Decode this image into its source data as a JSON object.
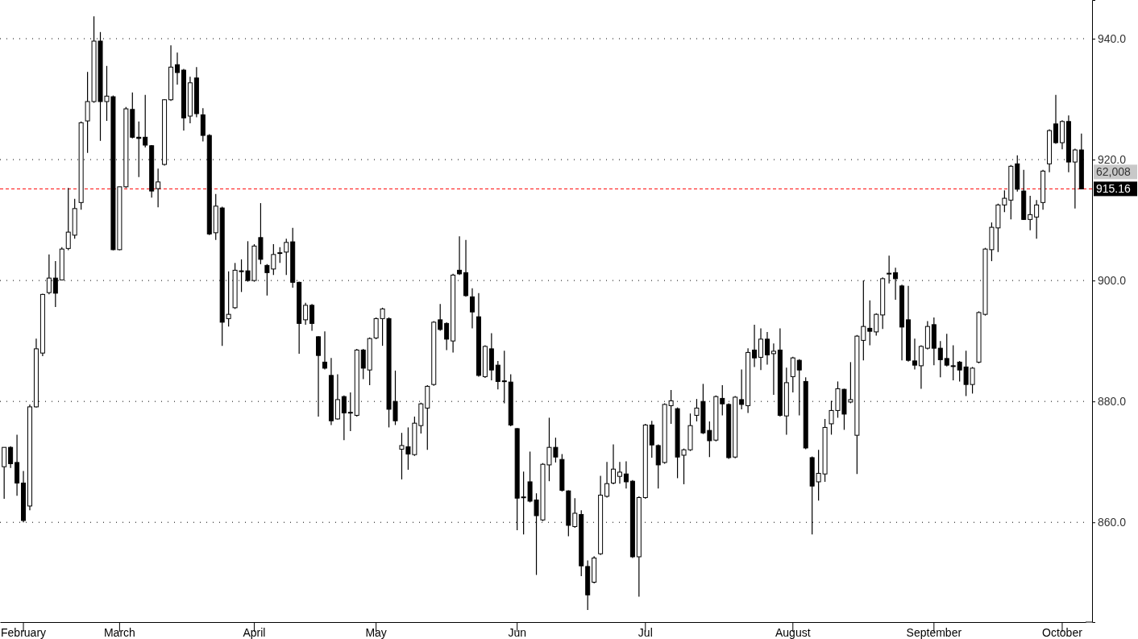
{
  "chart_data": {
    "type": "candlestick",
    "categories": [
      null,
      null,
      null,
      "February",
      null,
      null,
      null,
      null,
      null,
      null,
      null,
      null,
      null,
      null,
      null,
      null,
      null,
      null,
      "March",
      null,
      null,
      null,
      null,
      null,
      null,
      null,
      null,
      null,
      null,
      null,
      null,
      null,
      null,
      null,
      null,
      null,
      null,
      null,
      null,
      "April",
      null,
      null,
      null,
      null,
      null,
      null,
      null,
      null,
      null,
      null,
      null,
      null,
      null,
      null,
      null,
      null,
      null,
      null,
      "May",
      null,
      null,
      null,
      null,
      null,
      null,
      null,
      null,
      null,
      null,
      null,
      null,
      null,
      null,
      null,
      null,
      null,
      null,
      null,
      null,
      null,
      "Jun",
      null,
      null,
      null,
      null,
      null,
      null,
      null,
      null,
      null,
      null,
      null,
      null,
      null,
      null,
      null,
      null,
      null,
      null,
      null,
      "Jul",
      null,
      null,
      null,
      null,
      null,
      null,
      null,
      null,
      null,
      null,
      null,
      null,
      null,
      null,
      null,
      null,
      null,
      null,
      null,
      null,
      null,
      null,
      "August",
      null,
      null,
      null,
      null,
      null,
      null,
      null,
      null,
      null,
      null,
      null,
      null,
      null,
      null,
      null,
      null,
      null,
      null,
      null,
      null,
      null,
      "September",
      null,
      null,
      null,
      null,
      null,
      null,
      null,
      null,
      null,
      null,
      null,
      null,
      null,
      null,
      null,
      null,
      null,
      null,
      null,
      "October",
      null,
      null,
      null
    ],
    "ohlc": [
      [
        869.2,
        872.4,
        863.9,
        872.4
      ],
      [
        872.4,
        872.6,
        869.0,
        869.7
      ],
      [
        869.9,
        874.5,
        864.4,
        866.5
      ],
      [
        866.5,
        868.5,
        860.0,
        860.3
      ],
      [
        862.7,
        879.5,
        862.0,
        879.1
      ],
      [
        879.1,
        890.4,
        879.0,
        888.7
      ],
      [
        888.0,
        897.8,
        887.5,
        897.7
      ],
      [
        898.0,
        904.3,
        897.7,
        900.4
      ],
      [
        900.4,
        903.2,
        895.6,
        897.9
      ],
      [
        900.1,
        905.5,
        900.0,
        905.2
      ],
      [
        905.3,
        915.3,
        905.0,
        908.0
      ],
      [
        907.5,
        913.5,
        906.9,
        911.9
      ],
      [
        912.9,
        926.3,
        911.7,
        926.1
      ],
      [
        926.4,
        934.5,
        921.1,
        929.6
      ],
      [
        929.6,
        943.7,
        929.4,
        939.6
      ],
      [
        939.6,
        941.1,
        923.1,
        929.6
      ],
      [
        929.6,
        935.5,
        926.4,
        930.5
      ],
      [
        930.4,
        930.6,
        905.0,
        905.1
      ],
      [
        905.1,
        915.5,
        905.0,
        915.5
      ],
      [
        915.5,
        928.7,
        915.3,
        928.4
      ],
      [
        928.3,
        931.1,
        923.5,
        923.7
      ],
      [
        923.7,
        926.3,
        917.1,
        923.5
      ],
      [
        923.7,
        930.7,
        922.0,
        922.4
      ],
      [
        922.3,
        922.4,
        913.7,
        914.8
      ],
      [
        915.2,
        918.5,
        912.1,
        916.3
      ],
      [
        919.2,
        930.0,
        919.0,
        929.9
      ],
      [
        929.9,
        938.9,
        929.7,
        935.3
      ],
      [
        935.7,
        937.7,
        932.4,
        934.4
      ],
      [
        934.8,
        935.0,
        924.8,
        926.9
      ],
      [
        927.2,
        933.7,
        926.0,
        932.7
      ],
      [
        933.5,
        935.3,
        927.0,
        927.6
      ],
      [
        927.4,
        928.5,
        923.0,
        924.0
      ],
      [
        924.0,
        924.2,
        907.5,
        907.7
      ],
      [
        907.9,
        914.3,
        906.7,
        912.3
      ],
      [
        912.0,
        912.2,
        889.2,
        893.1
      ],
      [
        893.7,
        901.5,
        892.4,
        894.4
      ],
      [
        895.5,
        902.9,
        895.3,
        901.7
      ],
      [
        901.6,
        903.5,
        898.1,
        901.5
      ],
      [
        901.6,
        906.5,
        899.8,
        900.0
      ],
      [
        900.0,
        906.0,
        899.8,
        905.7
      ],
      [
        907.1,
        912.8,
        902.7,
        903.5
      ],
      [
        902.5,
        902.7,
        897.5,
        901.3
      ],
      [
        901.9,
        906.0,
        900.9,
        904.3
      ],
      [
        904.5,
        905.5,
        902.9,
        904.6
      ],
      [
        904.7,
        906.9,
        900.9,
        906.3
      ],
      [
        906.4,
        908.7,
        898.8,
        899.7
      ],
      [
        899.7,
        899.8,
        887.9,
        892.9
      ],
      [
        893.5,
        896.3,
        892.7,
        895.9
      ],
      [
        895.9,
        896.1,
        891.7,
        892.9
      ],
      [
        890.7,
        890.8,
        877.5,
        887.6
      ],
      [
        886.5,
        891.6,
        885.3,
        885.5
      ],
      [
        884.3,
        887.2,
        876.1,
        876.8
      ],
      [
        877.1,
        884.5,
        877.0,
        880.3
      ],
      [
        880.8,
        881.0,
        873.6,
        878.1
      ],
      [
        878.1,
        881.5,
        875.1,
        878.2
      ],
      [
        877.7,
        888.7,
        877.5,
        888.5
      ],
      [
        888.5,
        888.7,
        883.7,
        885.5
      ],
      [
        885.2,
        890.6,
        882.7,
        890.4
      ],
      [
        890.5,
        893.9,
        890.3,
        893.7
      ],
      [
        893.7,
        895.5,
        889.2,
        895.3
      ],
      [
        893.7,
        893.9,
        875.7,
        878.7
      ],
      [
        880.0,
        885.1,
        876.1,
        876.8
      ],
      [
        872.1,
        874.8,
        867.1,
        872.7
      ],
      [
        872.5,
        875.7,
        868.7,
        871.3
      ],
      [
        871.2,
        877.5,
        871.0,
        876.4
      ],
      [
        876.0,
        879.8,
        874.7,
        879.6
      ],
      [
        878.9,
        882.7,
        872.0,
        882.5
      ],
      [
        882.8,
        893.3,
        882.6,
        893.1
      ],
      [
        893.5,
        896.1,
        891.7,
        891.9
      ],
      [
        892.9,
        893.1,
        888.5,
        890.3
      ],
      [
        890.0,
        901.1,
        888.1,
        900.9
      ],
      [
        901.7,
        907.3,
        900.9,
        901.1
      ],
      [
        901.3,
        906.7,
        897.3,
        897.5
      ],
      [
        897.3,
        898.7,
        892.1,
        894.8
      ],
      [
        894.0,
        897.9,
        884.1,
        884.3
      ],
      [
        884.1,
        889.3,
        883.9,
        889.1
      ],
      [
        888.7,
        891.3,
        883.5,
        885.2
      ],
      [
        886.0,
        886.7,
        882.0,
        883.3
      ],
      [
        883.4,
        888.4,
        879.7,
        883.3
      ],
      [
        883.2,
        884.5,
        875.9,
        876.1
      ],
      [
        875.5,
        875.6,
        858.7,
        864.0
      ],
      [
        864.1,
        868.4,
        858.0,
        864.2
      ],
      [
        866.7,
        871.7,
        863.3,
        863.5
      ],
      [
        863.7,
        864.8,
        851.3,
        861.1
      ],
      [
        860.4,
        869.8,
        860.2,
        869.6
      ],
      [
        869.5,
        877.3,
        866.8,
        872.4
      ],
      [
        872.4,
        874.0,
        869.9,
        870.8
      ],
      [
        870.4,
        871.3,
        865.1,
        865.3
      ],
      [
        865.2,
        865.3,
        857.7,
        859.5
      ],
      [
        859.3,
        864.0,
        859.1,
        861.5
      ],
      [
        861.3,
        862.0,
        851.1,
        852.8
      ],
      [
        852.7,
        853.7,
        845.5,
        848.0
      ],
      [
        850.1,
        854.4,
        849.9,
        854.1
      ],
      [
        854.8,
        867.7,
        854.6,
        864.5
      ],
      [
        864.3,
        870.0,
        864.1,
        866.4
      ],
      [
        866.5,
        872.9,
        866.3,
        868.8
      ],
      [
        867.6,
        870.0,
        866.4,
        868.3
      ],
      [
        868.0,
        870.1,
        865.6,
        866.7
      ],
      [
        866.8,
        867.0,
        854.1,
        854.3
      ],
      [
        854.3,
        864.3,
        847.7,
        864.1
      ],
      [
        864.1,
        876.3,
        863.9,
        876.1
      ],
      [
        876.1,
        876.8,
        870.7,
        872.8
      ],
      [
        872.7,
        872.9,
        865.6,
        869.5
      ],
      [
        869.9,
        879.7,
        869.7,
        879.5
      ],
      [
        879.3,
        881.9,
        876.3,
        880.1
      ],
      [
        878.8,
        879.0,
        867.3,
        870.8
      ],
      [
        871.1,
        872.2,
        866.3,
        872.0
      ],
      [
        872.0,
        878.0,
        871.8,
        876.0
      ],
      [
        877.7,
        880.4,
        876.7,
        878.9
      ],
      [
        880.0,
        882.9,
        874.6,
        874.8
      ],
      [
        875.2,
        876.7,
        870.8,
        873.5
      ],
      [
        873.6,
        881.0,
        873.4,
        880.8
      ],
      [
        880.5,
        882.7,
        877.7,
        879.6
      ],
      [
        879.5,
        879.7,
        870.5,
        870.7
      ],
      [
        870.8,
        880.9,
        870.6,
        880.7
      ],
      [
        880.3,
        885.3,
        878.7,
        879.5
      ],
      [
        879.3,
        888.8,
        878.1,
        888.1
      ],
      [
        888.5,
        892.7,
        885.7,
        887.2
      ],
      [
        887.3,
        892.1,
        885.2,
        890.3
      ],
      [
        890.3,
        891.5,
        886.1,
        887.7
      ],
      [
        887.9,
        889.6,
        881.1,
        888.3
      ],
      [
        888.5,
        892.1,
        877.5,
        877.7
      ],
      [
        877.6,
        885.6,
        874.5,
        883.1
      ],
      [
        884.1,
        887.4,
        881.5,
        887.2
      ],
      [
        886.8,
        887.0,
        877.7,
        885.2
      ],
      [
        883.3,
        884.0,
        872.1,
        872.3
      ],
      [
        870.7,
        870.9,
        858.0,
        866.0
      ],
      [
        866.7,
        872.0,
        863.6,
        868.1
      ],
      [
        868.0,
        877.1,
        866.7,
        875.7
      ],
      [
        876.3,
        880.1,
        874.5,
        878.5
      ],
      [
        878.5,
        883.3,
        877.3,
        882.1
      ],
      [
        882.0,
        882.1,
        875.3,
        877.9
      ],
      [
        879.9,
        886.5,
        879.7,
        880.3
      ],
      [
        874.4,
        891.0,
        868.0,
        890.8
      ],
      [
        890.1,
        900.0,
        886.8,
        892.4
      ],
      [
        892.1,
        896.7,
        889.3,
        891.6
      ],
      [
        891.5,
        894.6,
        890.9,
        894.4
      ],
      [
        894.3,
        900.5,
        892.0,
        900.3
      ],
      [
        901.1,
        904.1,
        899.5,
        901.2
      ],
      [
        901.3,
        902.1,
        896.8,
        900.3
      ],
      [
        899.1,
        899.3,
        886.8,
        892.3
      ],
      [
        893.5,
        899.1,
        886.6,
        886.8
      ],
      [
        886.7,
        890.4,
        885.3,
        886.0
      ],
      [
        885.9,
        889.3,
        882.1,
        889.1
      ],
      [
        888.8,
        893.3,
        888.6,
        892.4
      ],
      [
        892.7,
        893.9,
        886.0,
        888.8
      ],
      [
        888.8,
        890.0,
        884.0,
        886.9
      ],
      [
        887.1,
        891.2,
        885.8,
        886.0
      ],
      [
        885.9,
        889.3,
        883.5,
        885.8
      ],
      [
        886.5,
        886.7,
        883.3,
        885.2
      ],
      [
        885.7,
        888.4,
        880.9,
        882.8
      ],
      [
        882.8,
        885.7,
        881.3,
        885.5
      ],
      [
        886.5,
        894.9,
        886.3,
        894.7
      ],
      [
        894.4,
        905.4,
        894.2,
        905.2
      ],
      [
        905.1,
        909.6,
        903.2,
        908.8
      ],
      [
        908.7,
        912.7,
        904.7,
        912.5
      ],
      [
        912.5,
        914.9,
        911.3,
        913.6
      ],
      [
        913.3,
        919.1,
        910.1,
        918.9
      ],
      [
        919.3,
        920.7,
        914.7,
        915.1
      ],
      [
        914.8,
        918.3,
        910.0,
        910.1
      ],
      [
        910.1,
        914.0,
        908.3,
        910.9
      ],
      [
        910.5,
        913.3,
        906.9,
        912.5
      ],
      [
        912.9,
        918.3,
        911.7,
        918.1
      ],
      [
        919.3,
        925.0,
        917.9,
        924.8
      ],
      [
        925.9,
        930.7,
        922.6,
        922.8
      ],
      [
        922.8,
        926.5,
        921.7,
        926.3
      ],
      [
        926.3,
        927.3,
        917.9,
        919.6
      ],
      [
        919.6,
        921.8,
        911.9,
        921.6
      ],
      [
        921.6,
        924.3,
        915.1,
        915.16
      ]
    ],
    "ylim": [
      843.5,
      946.4
    ],
    "yticks": [
      {
        "value": 860,
        "label": "860.0"
      },
      {
        "value": 880,
        "label": "880.0"
      },
      {
        "value": 900,
        "label": "900.0"
      },
      {
        "value": 920,
        "label": "920.0"
      },
      {
        "value": 940,
        "label": "940.0"
      }
    ],
    "grid": "y",
    "ref_lines": [
      {
        "axis": "y",
        "value": 915.16,
        "label": "915.16",
        "color": "#ff0000",
        "line_style": "dashed"
      }
    ],
    "annotations": [
      "62,008"
    ]
  }
}
